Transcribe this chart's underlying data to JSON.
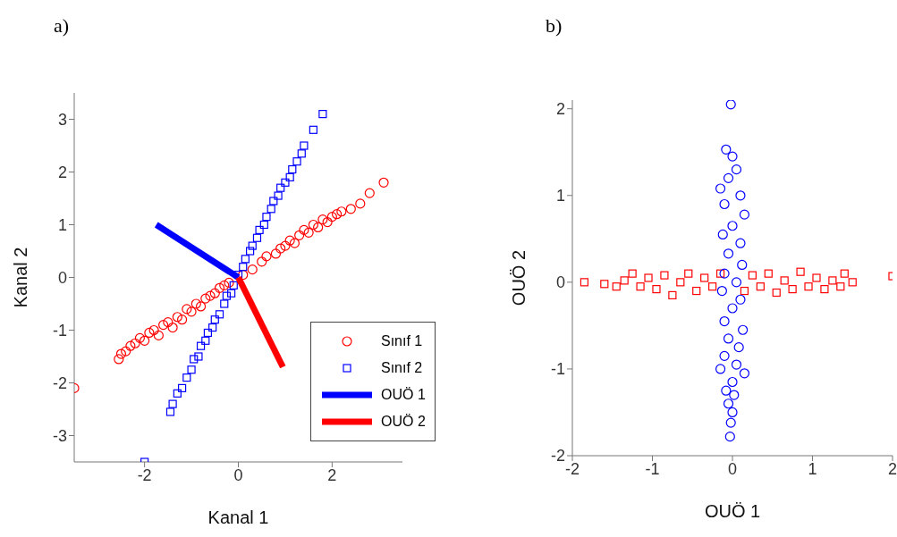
{
  "chart_data": [
    {
      "type": "scatter",
      "title": "a)",
      "xlabel": "Kanal 1",
      "ylabel": "Kanal 2",
      "xlim": [
        -3.5,
        3.5
      ],
      "ylim": [
        -3.5,
        3.5
      ],
      "xticks": [
        -2,
        0,
        2
      ],
      "yticks": [
        -3,
        -2,
        -1,
        0,
        1,
        2,
        3
      ],
      "legend": "bottom right",
      "series": [
        {
          "name": "Sınıf 1",
          "color": "#ff0000",
          "marker": "circle",
          "x": [
            -3.5,
            -2.55,
            -2.5,
            -2.4,
            -2.3,
            -2.2,
            -2.1,
            -2.0,
            -1.9,
            -1.8,
            -1.7,
            -1.6,
            -1.5,
            -1.4,
            -1.3,
            -1.2,
            -1.1,
            -1.0,
            -0.9,
            -0.8,
            -0.7,
            -0.6,
            -0.5,
            -0.4,
            -0.3,
            -0.2,
            0.1,
            0.3,
            0.5,
            0.6,
            0.8,
            0.9,
            1.0,
            1.1,
            1.2,
            1.3,
            1.4,
            1.5,
            1.6,
            1.7,
            1.8,
            1.9,
            2.0,
            2.1,
            2.2,
            2.4,
            2.6,
            2.8,
            3.1
          ],
          "values": [
            -2.1,
            -1.55,
            -1.45,
            -1.4,
            -1.3,
            -1.25,
            -1.15,
            -1.2,
            -1.05,
            -1.0,
            -1.1,
            -0.9,
            -0.85,
            -0.95,
            -0.75,
            -0.8,
            -0.6,
            -0.65,
            -0.5,
            -0.55,
            -0.4,
            -0.35,
            -0.3,
            -0.2,
            -0.15,
            -0.1,
            0.05,
            0.15,
            0.3,
            0.4,
            0.45,
            0.55,
            0.6,
            0.7,
            0.65,
            0.8,
            0.9,
            0.85,
            1.0,
            0.95,
            1.1,
            1.05,
            1.15,
            1.2,
            1.25,
            1.3,
            1.4,
            1.6,
            1.8
          ]
        },
        {
          "name": "Sınıf 2",
          "color": "#0000ff",
          "marker": "square",
          "x": [
            -2.0,
            -1.45,
            -1.4,
            -1.3,
            -1.2,
            -1.1,
            -1.0,
            -0.95,
            -0.85,
            -0.8,
            -0.7,
            -0.65,
            -0.55,
            -0.5,
            -0.4,
            -0.3,
            -0.25,
            -0.15,
            -0.1,
            0.0,
            0.1,
            0.15,
            0.25,
            0.3,
            0.4,
            0.45,
            0.55,
            0.6,
            0.7,
            0.75,
            0.85,
            0.9,
            1.0,
            1.1,
            1.15,
            1.25,
            1.35,
            1.4,
            1.6,
            1.8
          ],
          "values": [
            -3.5,
            -2.55,
            -2.4,
            -2.2,
            -2.1,
            -1.9,
            -1.75,
            -1.55,
            -1.5,
            -1.3,
            -1.2,
            -1.05,
            -0.95,
            -0.8,
            -0.7,
            -0.5,
            -0.35,
            -0.3,
            -0.15,
            0.05,
            0.2,
            0.35,
            0.5,
            0.6,
            0.75,
            0.9,
            1.0,
            1.15,
            1.3,
            1.45,
            1.55,
            1.7,
            1.8,
            1.9,
            2.05,
            2.2,
            2.35,
            2.5,
            2.8,
            3.1
          ]
        },
        {
          "name": "OUÖ 1",
          "type": "line",
          "color": "#0000ff",
          "x": [
            -1.75,
            0
          ],
          "values": [
            1.0,
            0
          ]
        },
        {
          "name": "OUÖ 2",
          "type": "line",
          "color": "#ff0000",
          "x": [
            0,
            0.95
          ],
          "values": [
            0,
            -1.7
          ]
        }
      ]
    },
    {
      "type": "scatter",
      "title": "b)",
      "xlabel": "OUÖ 1",
      "ylabel": "OUÖ 2",
      "xlim": [
        -2,
        2
      ],
      "ylim": [
        -2,
        2.1
      ],
      "xticks": [
        -2,
        -1,
        0,
        1,
        2
      ],
      "yticks": [
        -2,
        -1,
        0,
        1,
        2
      ],
      "series": [
        {
          "color": "#ff0000",
          "marker": "square",
          "x": [
            -1.85,
            -1.6,
            -1.45,
            -1.35,
            -1.25,
            -1.15,
            -1.05,
            -0.95,
            -0.85,
            -0.75,
            -0.65,
            -0.55,
            -0.45,
            -0.35,
            -0.25,
            -0.15,
            0.15,
            0.25,
            0.35,
            0.45,
            0.55,
            0.65,
            0.75,
            0.85,
            0.95,
            1.05,
            1.15,
            1.25,
            1.35,
            1.4,
            1.5,
            2.0
          ],
          "values": [
            0.0,
            -0.02,
            -0.05,
            0.02,
            0.1,
            -0.05,
            0.05,
            -0.08,
            0.08,
            -0.15,
            0.0,
            0.1,
            -0.1,
            0.05,
            -0.05,
            0.1,
            -0.1,
            0.08,
            -0.05,
            0.1,
            -0.12,
            0.02,
            -0.08,
            0.12,
            -0.05,
            0.05,
            -0.08,
            0.02,
            -0.05,
            0.1,
            0.0,
            0.07
          ]
        },
        {
          "color": "#0000ff",
          "marker": "circle",
          "x": [
            -0.02,
            -0.08,
            0.0,
            0.05,
            -0.05,
            -0.15,
            0.1,
            -0.1,
            0.15,
            0.0,
            -0.12,
            0.1,
            -0.05,
            0.12,
            -0.1,
            0.05,
            -0.13,
            0.1,
            0.0,
            -0.1,
            0.13,
            -0.05,
            0.08,
            -0.1,
            0.05,
            -0.15,
            0.15,
            0.0,
            -0.08,
            0.02,
            -0.05,
            0.0,
            -0.02,
            -0.03
          ],
          "values": [
            2.05,
            1.53,
            1.45,
            1.3,
            1.2,
            1.08,
            1.0,
            0.9,
            0.78,
            0.65,
            0.55,
            0.45,
            0.33,
            0.2,
            0.1,
            0.0,
            -0.1,
            -0.2,
            -0.3,
            -0.45,
            -0.55,
            -0.65,
            -0.75,
            -0.85,
            -0.95,
            -1.0,
            -1.05,
            -1.15,
            -1.25,
            -1.3,
            -1.4,
            -1.5,
            -1.62,
            -1.78
          ]
        }
      ]
    }
  ]
}
